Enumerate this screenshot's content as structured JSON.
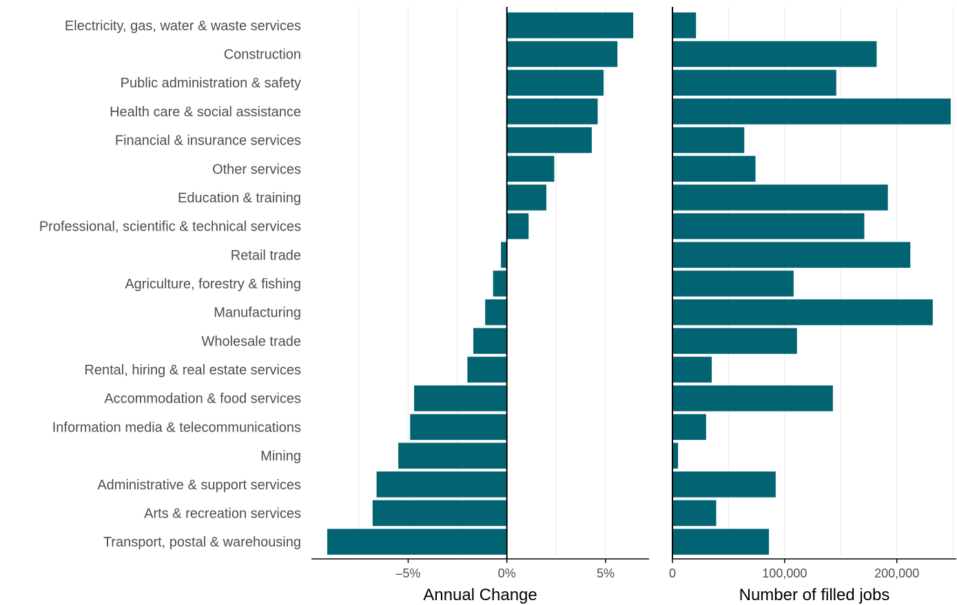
{
  "colors": {
    "bar": "#026373",
    "grid": "#ebebeb",
    "axis": "#000000",
    "label": "#4d4d4d"
  },
  "chart_data": [
    {
      "type": "bar",
      "orientation": "horizontal",
      "categories": [
        "Electricity, gas, water & waste services",
        "Construction",
        "Public administration & safety",
        "Health care & social assistance",
        "Financial & insurance services",
        "Other services",
        "Education & training",
        "Professional, scientific & technical services",
        "Retail trade",
        "Agriculture, forestry & fishing",
        "Manufacturing",
        "Wholesale trade",
        "Rental, hiring & real estate services",
        "Accommodation & food services",
        "Information media & telecommunications",
        "Mining",
        "Administrative & support services",
        "Arts & recreation services",
        "Transport, postal & warehousing"
      ],
      "values": [
        6.4,
        5.6,
        4.9,
        4.6,
        4.3,
        2.4,
        2.0,
        1.1,
        -0.3,
        -0.7,
        -1.1,
        -1.7,
        -2.0,
        -4.7,
        -4.9,
        -5.5,
        -6.6,
        -6.8,
        -9.1
      ],
      "xlabel": "Annual Change",
      "xlim": [
        -9.9,
        7.2
      ],
      "xticks": [
        -5,
        0,
        5
      ],
      "xtick_labels": [
        "–5%",
        "0%",
        "5%"
      ],
      "grid": true
    },
    {
      "type": "bar",
      "orientation": "horizontal",
      "values": [
        21000,
        182000,
        146000,
        248000,
        64000,
        74000,
        192000,
        171000,
        212000,
        108000,
        232000,
        111000,
        35000,
        143000,
        30000,
        5000,
        92000,
        39000,
        86000
      ],
      "xlabel": "Number of filled jobs",
      "xlim": [
        0,
        253000
      ],
      "xticks": [
        0,
        100000,
        200000
      ],
      "xtick_labels": [
        "0",
        "100,000",
        "200,000"
      ],
      "grid": true
    }
  ]
}
